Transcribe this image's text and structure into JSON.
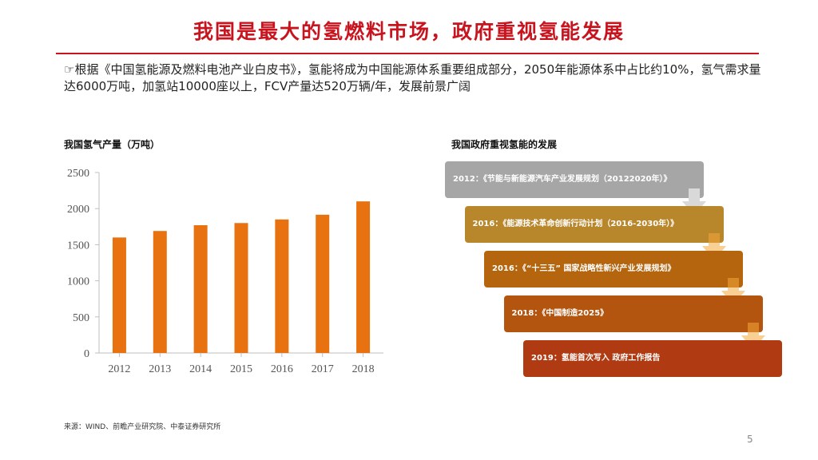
{
  "title": "我国是最大的氢燃料市场，政府重视氢能发展",
  "intro": {
    "icon": "pointing-hand-icon",
    "text": "根据《中国氢能源及燃料电池产业白皮书》，氢能将成为中国能源体系重要组成部分，2050年能源体系中占比约10%，氢气需求量达6000万吨，加氢站10000座以上，FCV产量达520万辆/年，发展前景广阔"
  },
  "left_section": {
    "label": "我国氢气产量（万吨）"
  },
  "right_section": {
    "label": "我国政府重视氢能的发展"
  },
  "chart_data": {
    "type": "bar",
    "title": "我国氢气产量（万吨）",
    "categories": [
      "2012",
      "2013",
      "2014",
      "2015",
      "2016",
      "2017",
      "2018"
    ],
    "values": [
      1600,
      1690,
      1770,
      1800,
      1850,
      1915,
      2100
    ],
    "y_ticks": [
      "0",
      "500",
      "1000",
      "1500",
      "2000",
      "2500"
    ],
    "ylim": [
      0,
      2500
    ],
    "xlabel": "",
    "ylabel": "",
    "grid": false,
    "bar_color": "#e8720f"
  },
  "timeline": [
    {
      "text": "2012：《节能与新能源汽车产业发展规划（20122020年）》",
      "color": "#a6a6a6"
    },
    {
      "text": "2016：《能源技术革命创新行动计划（2016-2030年）》",
      "color": "#b8862b"
    },
    {
      "text": "2016：《“十三五” 国家战略性新兴产业发展规划》",
      "color": "#b4650d"
    },
    {
      "text": "2018：《中国制造2025》",
      "color": "#b4550f"
    },
    {
      "text": "2019：氢能首次写入 政府工作报告",
      "color": "#b03a12"
    }
  ],
  "source": "来源：WIND、前瞻产业研究院、中泰证券研究所",
  "page_number": "5",
  "colors": {
    "accent": "#c8141e",
    "bar": "#e8720f",
    "arrow": "#f4a73c"
  }
}
